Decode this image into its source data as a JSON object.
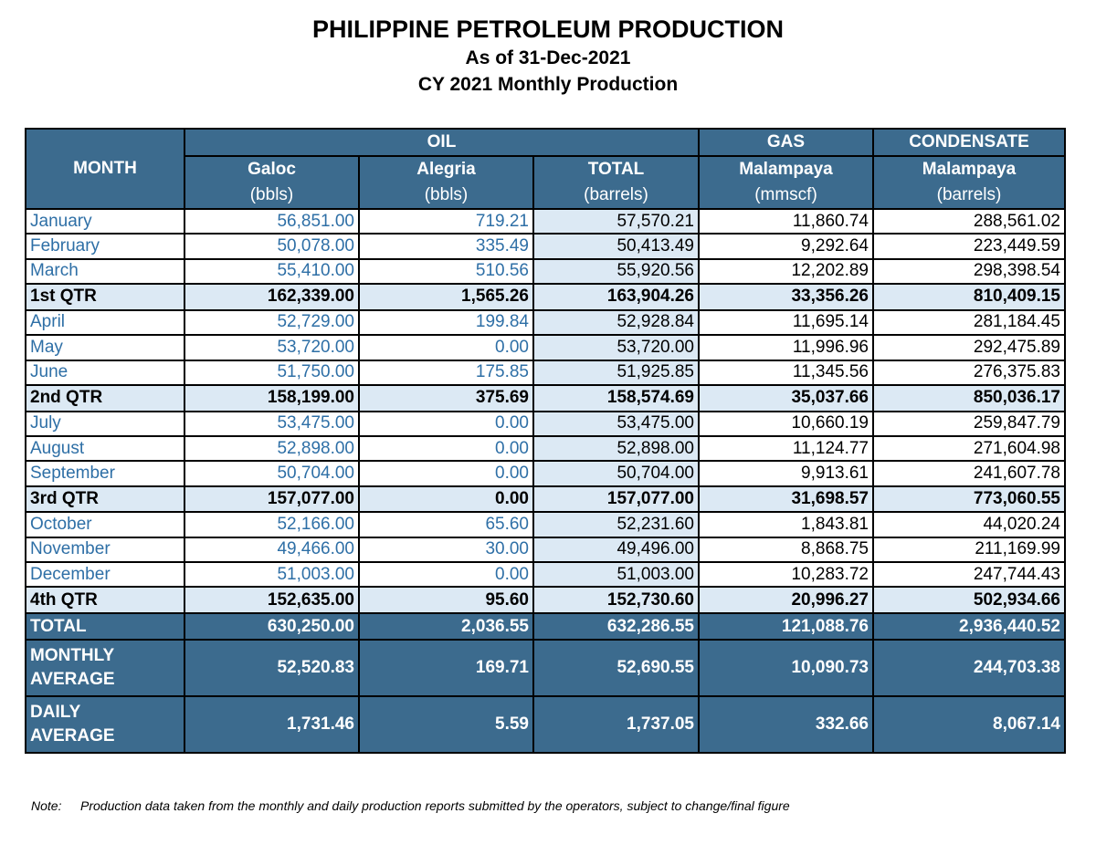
{
  "title": "PHILIPPINE PETROLEUM PRODUCTION",
  "subtitle1": "As of 31-Dec-2021",
  "subtitle2": "CY 2021 Monthly  Production",
  "headers": {
    "month": "MONTH",
    "oil": "OIL",
    "gas": "GAS",
    "condensate": "CONDENSATE",
    "galoc": "Galoc",
    "galoc_unit": "(bbls)",
    "alegria": "Alegria",
    "alegria_unit": "(bbls)",
    "total": "TOTAL",
    "total_unit": "(barrels)",
    "gas_field": "Malampaya",
    "gas_unit": "(mmscf)",
    "cond_field": "Malampaya",
    "cond_unit": "(barrels)"
  },
  "rows": [
    {
      "type": "month",
      "label": "January",
      "galoc": "56,851.00",
      "alegria": "719.21",
      "total": "57,570.21",
      "gas": "11,860.74",
      "cond": "288,561.02"
    },
    {
      "type": "month",
      "label": "February",
      "galoc": "50,078.00",
      "alegria": "335.49",
      "total": "50,413.49",
      "gas": "9,292.64",
      "cond": "223,449.59"
    },
    {
      "type": "month",
      "label": "March",
      "galoc": "55,410.00",
      "alegria": "510.56",
      "total": "55,920.56",
      "gas": "12,202.89",
      "cond": "298,398.54"
    },
    {
      "type": "qtr",
      "label": "1st QTR",
      "galoc": "162,339.00",
      "alegria": "1,565.26",
      "total": "163,904.26",
      "gas": "33,356.26",
      "cond": "810,409.15"
    },
    {
      "type": "month",
      "label": "April",
      "galoc": "52,729.00",
      "alegria": "199.84",
      "total": "52,928.84",
      "gas": "11,695.14",
      "cond": "281,184.45"
    },
    {
      "type": "month",
      "label": "May",
      "galoc": "53,720.00",
      "alegria": "0.00",
      "total": "53,720.00",
      "gas": "11,996.96",
      "cond": "292,475.89"
    },
    {
      "type": "month",
      "label": "June",
      "galoc": "51,750.00",
      "alegria": "175.85",
      "total": "51,925.85",
      "gas": "11,345.56",
      "cond": "276,375.83"
    },
    {
      "type": "qtr",
      "label": "2nd QTR",
      "galoc": "158,199.00",
      "alegria": "375.69",
      "total": "158,574.69",
      "gas": "35,037.66",
      "cond": "850,036.17"
    },
    {
      "type": "month",
      "label": "July",
      "galoc": "53,475.00",
      "alegria": "0.00",
      "total": "53,475.00",
      "gas": "10,660.19",
      "cond": "259,847.79"
    },
    {
      "type": "month",
      "label": "August",
      "galoc": "52,898.00",
      "alegria": "0.00",
      "total": "52,898.00",
      "gas": "11,124.77",
      "cond": "271,604.98"
    },
    {
      "type": "month",
      "label": "September",
      "galoc": "50,704.00",
      "alegria": "0.00",
      "total": "50,704.00",
      "gas": "9,913.61",
      "cond": "241,607.78"
    },
    {
      "type": "qtr",
      "label": "3rd QTR",
      "galoc": "157,077.00",
      "alegria": "0.00",
      "total": "157,077.00",
      "gas": "31,698.57",
      "cond": "773,060.55"
    },
    {
      "type": "month",
      "label": "October",
      "galoc": "52,166.00",
      "alegria": "65.60",
      "total": "52,231.60",
      "gas": "1,843.81",
      "cond": "44,020.24"
    },
    {
      "type": "month",
      "label": "November",
      "galoc": "49,466.00",
      "alegria": "30.00",
      "total": "49,496.00",
      "gas": "8,868.75",
      "cond": "211,169.99"
    },
    {
      "type": "month",
      "label": "December",
      "galoc": "51,003.00",
      "alegria": "0.00",
      "total": "51,003.00",
      "gas": "10,283.72",
      "cond": "247,744.43"
    },
    {
      "type": "qtr",
      "label": "4th QTR",
      "galoc": "152,635.00",
      "alegria": "95.60",
      "total": "152,730.60",
      "gas": "20,996.27",
      "cond": "502,934.66"
    }
  ],
  "summary": [
    {
      "label": "TOTAL",
      "galoc": "630,250.00",
      "alegria": "2,036.55",
      "total": "632,286.55",
      "gas": "121,088.76",
      "cond": "2,936,440.52"
    },
    {
      "label_line1": "MONTHLY",
      "label_line2": "AVERAGE",
      "galoc": "52,520.83",
      "alegria": "169.71",
      "total": "52,690.55",
      "gas": "10,090.73",
      "cond": "244,703.38"
    },
    {
      "label_line1": "DAILY",
      "label_line2": "AVERAGE",
      "galoc": "1,731.46",
      "alegria": "5.59",
      "total": "1,737.05",
      "gas": "332.66",
      "cond": "8,067.14"
    }
  ],
  "note_label": "Note:",
  "note_text": "Production data taken from the monthly and daily production reports submitted by the operators, subject to change/final figure",
  "colors": {
    "header_bg": "#3c6b8e",
    "quarter_bg": "#dce9f4",
    "month_text": "#2e6fa6"
  }
}
